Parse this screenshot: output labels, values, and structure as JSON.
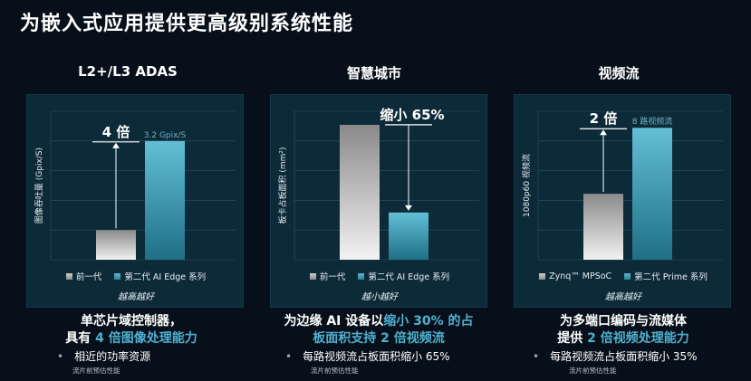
{
  "title": "为嵌入式应用提供更高级别系统性能",
  "panels": [
    {
      "heading": "L2+/L3 ADAS",
      "ylabel": "图像吞吐量 (Gpix/S)",
      "annotation": "4 倍",
      "bar_label": "3.2 Gpix/S",
      "legend": [
        "前一代",
        "第二代 AI Edge 系列"
      ],
      "better": "越高越好",
      "desc_line1": "单芯片域控制器，",
      "desc_line2_pre": "具有 ",
      "desc_line2_hl": "4 倍图像处理能力",
      "bullet": "相近的功率资源",
      "note": "流片前预估性能"
    },
    {
      "heading": "智慧城市",
      "ylabel": "板卡占板面积 (mm²)",
      "annotation": "缩小 65%",
      "legend": [
        "前一代",
        "第二代 AI Edge 系列"
      ],
      "better": "越小越好",
      "desc_line1_pre": "为边缘 AI 设备以",
      "desc_line1_hl": "缩小 30% 的占",
      "desc_line2_hl": "板面积支持 2 倍视频流",
      "bullet": "每路视频流占板面积缩小 65%",
      "note": "流片前预估性能"
    },
    {
      "heading": "视频流",
      "ylabel": "1080p60 视频流",
      "annotation": "2 倍",
      "bar_label": "8 路视频流",
      "legend": [
        "Zynq™ MPSoC",
        "第二代 Prime 系列"
      ],
      "better": "越高越好",
      "desc_line1": "为多端口编码与流媒体",
      "desc_line2_pre": "提供 ",
      "desc_line2_hl": "2 倍视频处理能力",
      "bullet": "每路视频流占板面积缩小 35%",
      "note": "流片前预估性能"
    }
  ],
  "chart_data": [
    {
      "type": "bar",
      "title": "L2+/L3 ADAS",
      "ylabel": "图像吞吐量 (Gpix/S)",
      "categories": [
        "前一代",
        "第二代 AI Edge 系列"
      ],
      "values": [
        0.8,
        3.2
      ],
      "ylim": [
        0,
        4
      ],
      "grid": true
    },
    {
      "type": "bar",
      "title": "智慧城市",
      "ylabel": "板卡占板面积 (mm²)",
      "categories": [
        "前一代",
        "第二代 AI Edge 系列"
      ],
      "values": [
        100,
        35
      ],
      "ylim": [
        0,
        110
      ],
      "grid": true
    },
    {
      "type": "bar",
      "title": "视频流",
      "ylabel": "1080p60 视频流",
      "categories": [
        "Zynq™ MPSoC",
        "第二代 Prime 系列"
      ],
      "values": [
        4,
        8
      ],
      "ylim": [
        0,
        9
      ],
      "grid": true
    }
  ]
}
